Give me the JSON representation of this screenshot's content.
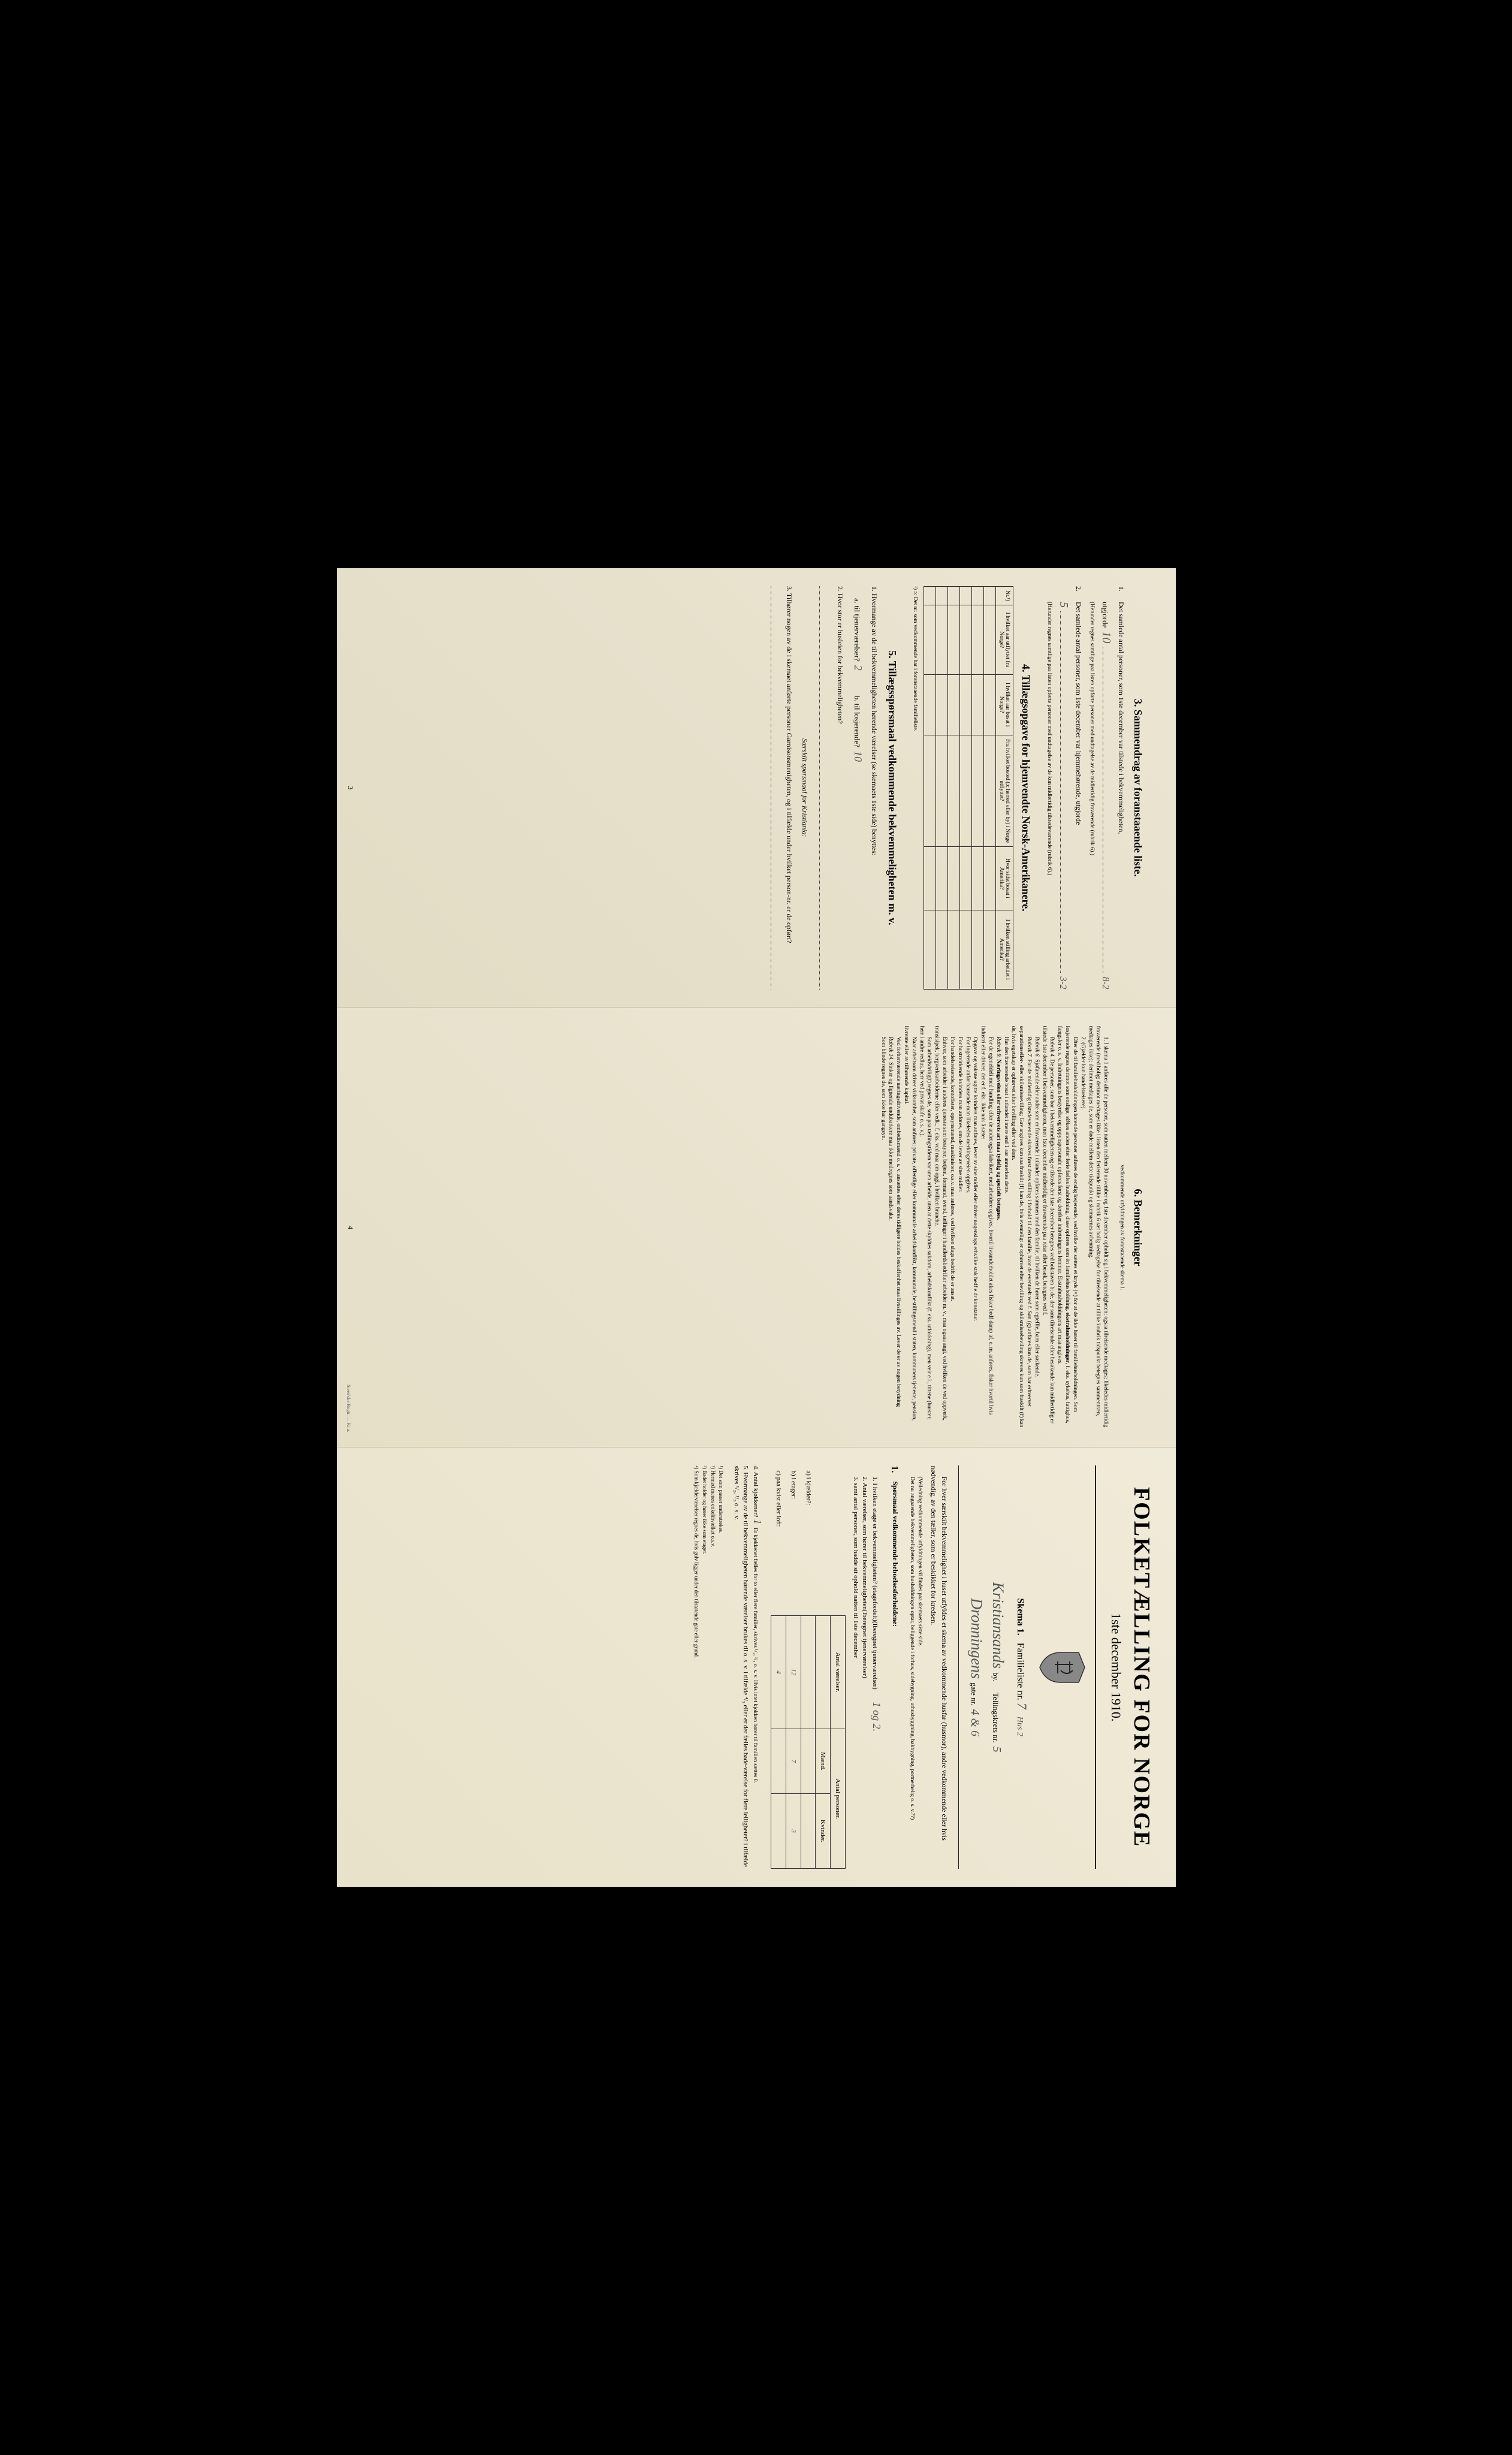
{
  "panel1": {
    "section3_title": "3. Sammendrag av foranstaaende liste.",
    "q1_label": "1.",
    "q1_text": "Det samlede antal personer, som 1ste december var tilstede i bekvemmeligheten,",
    "q1_sub": "(Herunder regnes samtlige paa listen opførte personer med undtagelse av de midlertidig fraværende (rubrik 6).)",
    "q1_utgjorde": "utgjorde",
    "q1_val": "10",
    "q1_val2": "8-2",
    "q2_label": "2.",
    "q2_text": "Det samlede antal personer, som 1ste december var hjemmehørende, utgjorde",
    "q2_sub": "(Herunder regnes samtlige paa listen opførte personer med undtagelse av de kun midlertidig tilstedeværende (rubrik 6).)",
    "q2_val": "5",
    "q2_val2": "3-2",
    "section4_title": "4. Tillægsopgave for hjemvendte Norsk-Amerikanere.",
    "table4_headers": [
      "Nr.¹)",
      "I hvilket aar utflyttet fra Norge?",
      "I hvilket aar bosat i Norge?",
      "Fra hvilket bosted (ɔ: herred eller by) i Norge utflyttet?",
      "Hvor sidst bosat i Amerika?",
      "I hvilken stilling arbeidet i Amerika?"
    ],
    "table4_footnote": "¹) ɔ: Det nr. som vedkommende har i foranstaaende familieliste.",
    "section5_title": "5. Tillægsspørsmaal vedkommende bekvemmeligheten m. v.",
    "q5_1": "1. Hvormange av de til bekvemmeligheten hørende værelser (se skemaets 1ste side) benyttes:",
    "q5_1a": "a. til tjenerværelser?",
    "q5_1a_val": "2",
    "q5_1b": "b. til losjerende?",
    "q5_1b_val": "10",
    "q5_2": "2. Hvor stor er husleien for bekvemmeligheten?",
    "q5_2_note": "Særskilt spørsmaal for Kristiania:",
    "q5_3": "3. Tilhører nogen av de i skemaet anførte personer Garnisonsmenigheten, og i tilfælde under hvilket person-nr. er de opført?",
    "page_num": "3"
  },
  "panel2": {
    "section6_title": "6. Bemerkninger",
    "section6_sub": "vedkommende utfyldningen av foranstaaende skema 1.",
    "para1": "1. I skema 1 anføres alle de personer, som natten mellem 30 november og 1ste december opholdt sig i bekvemmeligheten; ogsaa tilreisende medtages; likeledes midlertidig fraværende (med bolig; derimot medtages ikke i listen den ferierende tillike i rubrik 6 sæt bolig vedtagelse for tilreisende at tillike i rubrik tidspunkt betegnes sammentræn, medtages ikke); derimot medtages de, som er døde mellem dette tidspunkt og skemaernes avhentning.",
    "para2": "2. (Gjælder kun handelsreisere).",
    "para3_intro": "Efter de til familiehusholdningen hørende personer anføres de enslig losjerende, ved hvilke der sættes et kryds (×) for at de ikke hører til familiehusholdningen. Som losjerende regnes derimot som enslige; sØkes anden efter ferie fælles husholdning, disse opføres som én familiehusholdning.",
    "para3_bold": "ekstrahusholdninger",
    "para3_cont": "f. eks. sykehus, fattighus, fængsler o. s. v. Indretningens bestyrelse og oppynspersonale opføres først og derefter indretningens lemmer. Ekstrahusholdningens art maa angives.",
    "rubrik4_title": "Rubrik 4.",
    "rubrik4": "De personer, som bor i bekvemmeligheten og er tilstede der 1ste december betegnes ved bokstaven b; de, der som tilreisende eller besøkende kun midlertidig er tilstede 1ste december i bekvemmeligheten, men 1ste december midlertidig er fraværende paa reise eller besøk, betegnes ved f.",
    "rubrik6_title": "Rubrik 6.",
    "rubrik6": "Sjøfarende eller andre som er fraværende i utlandet opføres sammen med den familie, til hvilken de hører som egteflle, barn eller søskende.",
    "rubrik7_title": "Rubrik 7.",
    "rubrik7": "For de midlertidig tilstedeværende skrives først deres stilling i forhold til den familie, hvor de eventuelt ved f. Søn (g) anføres kun de, som har erhvervet separationseller- eller skilsmissevilling; Gav angives kun saa fraskilt (f) kan de, hvis eventeligt er ophørvet efter bevilling og skilsmissebeviling skreves kun som fraskilt (f) kan de, hvis egetskap er ophørvet efter bevilling eller ved dom.",
    "rubrik7b": "Har den fraværende bosat i utlandet i mere end 1 aar anmerkes dette.",
    "rubrik9_title": "Rubrik 9.",
    "rubrik9": "Næringsveien eller erhvervets art maa tydelig og specielt betegnes.",
    "rubrik9_cont": "For de egeneldeli med handling eller de andet ogsa fabrikert, medarbeidere opgives, hvortil livsunderholdet akes fisker bedf damp af, e. m. anføres, fisker hvortil hvis industri eller driver; det er f. eks. ikke nok å sæte:",
    "rubrik9_cont2": "Opgave og voksne ugitte kvinders man anføres, lever av sine midler eller driver nogenslags erhvilke stak hedf e.dr konstatur.",
    "rubrik9_cont3": "For logerende anfør bausende man likeledes merkingeveien opgives.",
    "rubrik9_cont4": "For hustrvirkende kvinders man anføres, om de lever av sine midler.",
    "rubrik9_cont5": "For handelsreisende, kontofister, opsynsmænd, maskinister, o.s.v. maa anføres, ved hvilken slags bedrift de er ansat.",
    "rubrik9_cont6": "Enhver, som arbeider i anderes tjeneste som bestyrer, betjent, formand, svend, tællinger i handlerdsbedrifter arbeider m. v., maa ogsaa angi, ved hvilken de ved oppverk, transisipek, bergverksarbeiderne eller vedk., f. eks. ved maa om opgi, i hvilken branche.",
    "rubrik9_cont7": "Som arbeidsdrilig(t) regnes de, som paa tællingstidern var uten arbeide, uten at dette skyldtes sukdom, arbeidskonflikt (f. eks. utlokkning), men veir e.l., tittene (hurster, herr i andre redlus, herr ved privat skafe o. s. v.).",
    "rubrik9_cont8": "Naar arbeitsom driver virksomhet, som anføres; private, offentlige eller kommunale arbeidskonflikt, kommunale, bestillingsmend i staten, kommuners tjeneste, pension, livrente eller av tilhørende kapital.",
    "rubrik9_cont9": "Ved forhenværende næringsdrivende, ombedtsmænd o. s. v. ansættes efter deres tidligere holdes beskaffenhet maa livssillinges av. Lever de er av nogen betydning",
    "rubrik14_title": "Rubrik 14.",
    "rubrik14": "Sinker og lignende undubarkere maa ikke medregnes som aandsvake.",
    "rubrik14b": "Som blinde regnes de, som ikke har gangsyn.",
    "page_num": "4",
    "printer": "Steen'ske Bogtr. — Kr.a."
  },
  "panel3": {
    "main_title": "FOLKETÆLLING FOR NORGE",
    "date": "1ste december 1910.",
    "schema_label": "Skema 1.",
    "familieliste": "Familieliste nr.",
    "familieliste_val": "7",
    "tellingskrets": "Tellingskrets nr.",
    "tellingskrets_val": "5",
    "hust_val": "Hus 2",
    "by_label": "by.",
    "city_val": "Kristiansands",
    "gate_label": "gate nr.",
    "gate_name": "Dronningens",
    "gate_val": "4 & 6",
    "intro": "For hver særskilt bekvemmelighet i huset utfyldes et skema av vedkommende husfar (husmor), andre vedkommende eller hvis nødvendig, av den tæller, som er beskikket for kredsen.",
    "intro2": "(Veiledning vedkommende utfyldningen vil findes paa skemaets siste side.",
    "intro3": "Det nu angaaende bekvemmeligheten, som husholdningen optar, beliggende i forhus, sidebygning, uthusbyggning, bakbygning, portnerhelig o. s. v.??)",
    "q1_label": "1.",
    "q1": "Spørsmaal vedkommende beboelsesforholdene:",
    "q1_1": "I hvilken etage er bekvemmeligheten? (etagefordelt)(Iberegnet tjenerværelser)",
    "q1_1_val": "1 og 2.",
    "q1_2": "Antal værelser, som hører til bekvemmeligheten(Iberegnet tjenerværelser)",
    "q1_3": "samt antal personer, som hadde sit ophold natten til 1ste december",
    "row_a": "a) i kjælder?:",
    "row_b": "b) i etager:",
    "row_c": "c) paa kvist eller loft:",
    "stats_h1": "Antal værelser.",
    "stats_h2": "Antal personer.",
    "stats_h3": "Mænd.",
    "stats_h4": "Kvinder.",
    "val_a1": "",
    "val_b1": "12",
    "val_b2": "7",
    "val_b3": "3",
    "val_c1": "4",
    "q4": "4. Antal kjøkkener?",
    "q4_val": "1",
    "q4_note": "Er kjøkkenet fælles for to eller flere familier, skrives ¹/₂, ¹/₃ o. s. v. Hvis intet kjokken hører til familien sættes 0.",
    "q5": "5. Hvormange av de til bekvemmeligheten hørende værelser brukes til o. s. v. i tilfælde ⁴/₅ eller er der fælles bade-værelse for flere leiligheter? i tilfælde skrives ¹/₂, ¹/₃ o. s. v.",
    "fn1": "¹) Det som passer understrekes.",
    "fn2": "²) Hermed menes enkelthvælket o.s.v.",
    "fn3": "³) Badet holder og hører ikke som etaget.",
    "fn4": "⁴) Som kjælderværelser regnes de, hvis gulv ligger under den tilstøtende gate eller grund."
  }
}
